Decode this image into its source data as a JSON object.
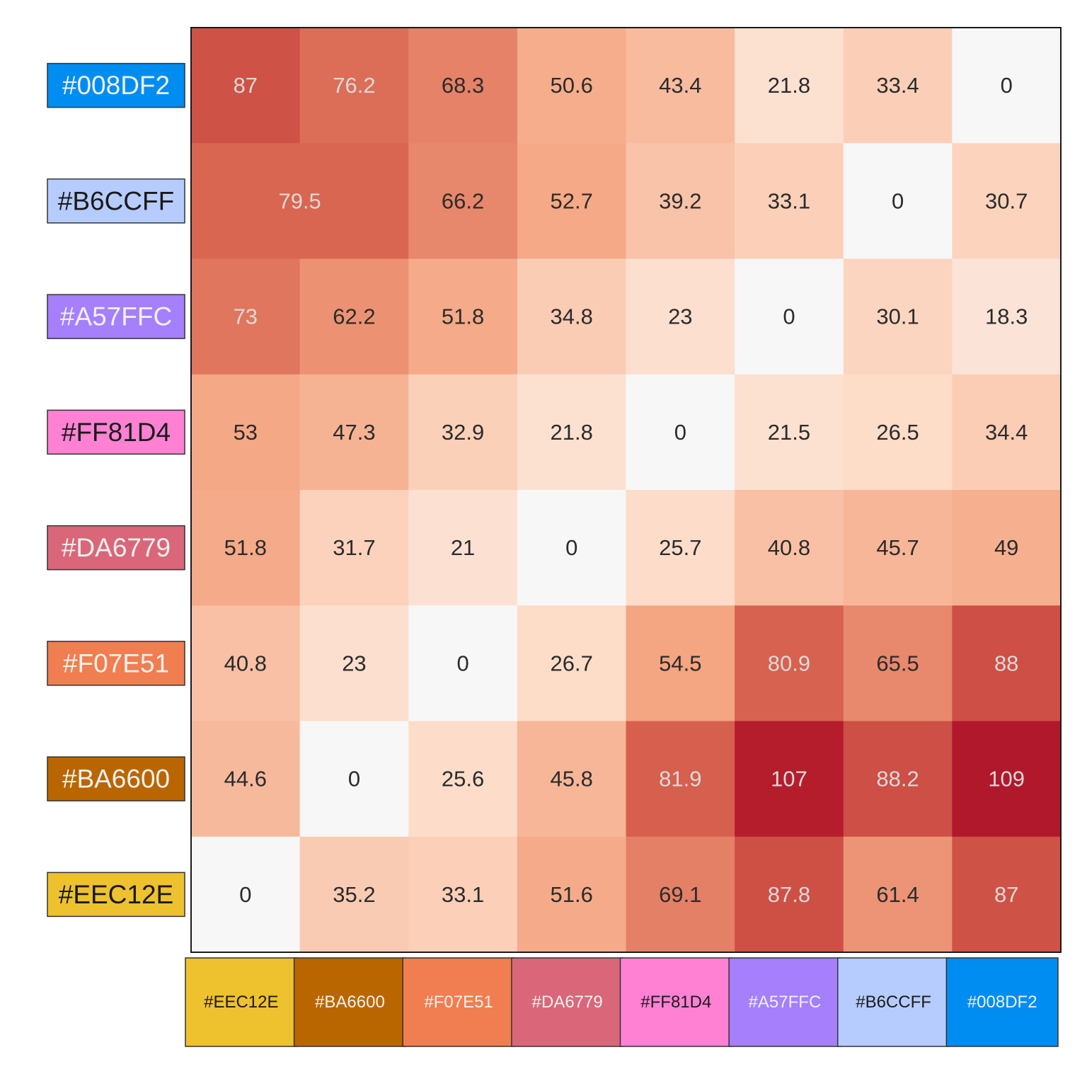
{
  "chart_data": {
    "type": "heatmap",
    "title": "",
    "xlabel": "",
    "ylabel": "",
    "grid": false,
    "legend": "none",
    "color_scale": {
      "min": 0,
      "max": 109,
      "stops": [
        "#f7f7f7",
        "#fddbc7",
        "#f4a582",
        "#d6604d",
        "#b2182b"
      ]
    },
    "rows": [
      {
        "label": "#008DF2",
        "color": "#008DF2"
      },
      {
        "label": "#B6CCFF",
        "color": "#B6CCFF"
      },
      {
        "label": "#A57FFC",
        "color": "#A57FFC"
      },
      {
        "label": "#FF81D4",
        "color": "#FF81D4"
      },
      {
        "label": "#DA6779",
        "color": "#DA6779"
      },
      {
        "label": "#F07E51",
        "color": "#F07E51"
      },
      {
        "label": "#BA6600",
        "color": "#BA6600"
      },
      {
        "label": "#EEC12E",
        "color": "#EEC12E"
      }
    ],
    "columns": [
      {
        "label": "#EEC12E",
        "color": "#EEC12E"
      },
      {
        "label": "#BA6600",
        "color": "#BA6600"
      },
      {
        "label": "#F07E51",
        "color": "#F07E51"
      },
      {
        "label": "#DA6779",
        "color": "#DA6779"
      },
      {
        "label": "#FF81D4",
        "color": "#FF81D4"
      },
      {
        "label": "#A57FFC",
        "color": "#A57FFC"
      },
      {
        "label": "#B6CCFF",
        "color": "#B6CCFF"
      },
      {
        "label": "#008DF2",
        "color": "#008DF2"
      }
    ],
    "values": [
      [
        87,
        76.2,
        68.3,
        50.6,
        43.4,
        21.8,
        33.4,
        0
      ],
      [
        79.5,
        79.5,
        66.2,
        52.7,
        39.2,
        33.1,
        0,
        30.7
      ],
      [
        73,
        62.2,
        51.8,
        34.8,
        23,
        0,
        30.1,
        18.3
      ],
      [
        53,
        47.3,
        32.9,
        21.8,
        0,
        21.5,
        26.5,
        34.4
      ],
      [
        51.8,
        31.7,
        21,
        0,
        25.7,
        40.8,
        45.7,
        49
      ],
      [
        40.8,
        23,
        0,
        26.7,
        54.5,
        80.9,
        65.5,
        88
      ],
      [
        44.6,
        0,
        25.6,
        45.8,
        81.9,
        107,
        88.2,
        109
      ],
      [
        0,
        35.2,
        33.1,
        51.6,
        69.1,
        87.8,
        61.4,
        87
      ]
    ],
    "cell_labels": [
      [
        "87",
        "76.2",
        "68.3",
        "50.6",
        "43.4",
        "21.8",
        "33.4",
        "0"
      ],
      [
        "79.5",
        "",
        "66.2",
        "52.7",
        "39.2",
        "33.1",
        "0",
        "30.7"
      ],
      [
        "73",
        "62.2",
        "51.8",
        "34.8",
        "23",
        "0",
        "30.1",
        "18.3"
      ],
      [
        "53",
        "47.3",
        "32.9",
        "21.8",
        "0",
        "21.5",
        "26.5",
        "34.4"
      ],
      [
        "51.8",
        "31.7",
        "21",
        "0",
        "25.7",
        "40.8",
        "45.7",
        "49"
      ],
      [
        "40.8",
        "23",
        "0",
        "26.7",
        "54.5",
        "80.9",
        "65.5",
        "88"
      ],
      [
        "44.6",
        "0",
        "25.6",
        "45.8",
        "81.9",
        "107",
        "88.2",
        "109"
      ],
      [
        "0",
        "35.2",
        "33.1",
        "51.6",
        "69.1",
        "87.8",
        "61.4",
        "87"
      ]
    ],
    "merged_label_cells": [
      {
        "row": 1,
        "col_start": 0,
        "col_end": 1,
        "label": "79.5"
      }
    ]
  }
}
